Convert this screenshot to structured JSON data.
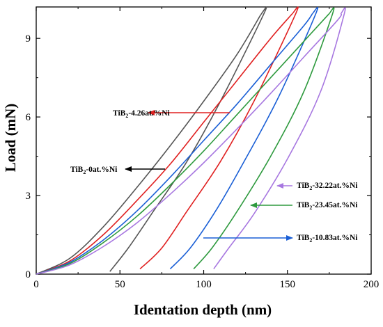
{
  "chart_data": {
    "type": "line",
    "title": "",
    "xlabel": "Identation depth (nm)",
    "ylabel": "Load (mN)",
    "xlim": [
      0,
      200
    ],
    "ylim": [
      0,
      10.2
    ],
    "xticks": [
      0,
      50,
      100,
      150,
      200
    ],
    "yticks": [
      0,
      3,
      6,
      9
    ],
    "grid": false,
    "legend": "none",
    "series": [
      {
        "name": "TiB2-0at.%Ni",
        "color": "#555555",
        "loading": [
          [
            0,
            0
          ],
          [
            20,
            0.6
          ],
          [
            40,
            1.8
          ],
          [
            60,
            3.3
          ],
          [
            80,
            4.9
          ],
          [
            100,
            6.6
          ],
          [
            120,
            8.4
          ],
          [
            134,
            9.9
          ]
        ],
        "unloading": [
          [
            136,
            9.95
          ],
          [
            110,
            6.6
          ],
          [
            90,
            4.3
          ],
          [
            70,
            2.4
          ],
          [
            55,
            1.0
          ],
          [
            44,
            0.1
          ]
        ]
      },
      {
        "name": "TiB2-4.26at.%Ni",
        "color": "#e02020",
        "loading": [
          [
            0,
            0
          ],
          [
            20,
            0.5
          ],
          [
            40,
            1.5
          ],
          [
            60,
            2.8
          ],
          [
            80,
            4.2
          ],
          [
            100,
            5.8
          ],
          [
            120,
            7.4
          ],
          [
            140,
            9.0
          ],
          [
            153,
            9.95
          ]
        ],
        "unloading": [
          [
            155,
            9.95
          ],
          [
            130,
            6.6
          ],
          [
            110,
            4.3
          ],
          [
            90,
            2.4
          ],
          [
            75,
            1.0
          ],
          [
            62,
            0.2
          ]
        ]
      },
      {
        "name": "TiB2-10.83at.%Ni",
        "color": "#1a5fd6",
        "loading": [
          [
            0,
            0
          ],
          [
            20,
            0.45
          ],
          [
            40,
            1.3
          ],
          [
            60,
            2.4
          ],
          [
            80,
            3.7
          ],
          [
            100,
            5.1
          ],
          [
            120,
            6.5
          ],
          [
            140,
            8.0
          ],
          [
            160,
            9.5
          ],
          [
            165,
            9.95
          ]
        ],
        "unloading": [
          [
            167,
            9.95
          ],
          [
            145,
            6.8
          ],
          [
            125,
            4.4
          ],
          [
            108,
            2.5
          ],
          [
            92,
            1.0
          ],
          [
            80,
            0.2
          ]
        ]
      },
      {
        "name": "TiB2-23.45at.%Ni",
        "color": "#2e9a3e",
        "loading": [
          [
            0,
            0
          ],
          [
            20,
            0.4
          ],
          [
            40,
            1.2
          ],
          [
            60,
            2.2
          ],
          [
            80,
            3.4
          ],
          [
            100,
            4.7
          ],
          [
            120,
            6.1
          ],
          [
            140,
            7.5
          ],
          [
            160,
            8.9
          ],
          [
            175,
            9.95
          ]
        ],
        "unloading": [
          [
            177,
            9.95
          ],
          [
            160,
            7.0
          ],
          [
            140,
            4.5
          ],
          [
            120,
            2.4
          ],
          [
            105,
            1.0
          ],
          [
            94,
            0.2
          ]
        ]
      },
      {
        "name": "TiB2-32.22at.%Ni",
        "color": "#a777e0",
        "loading": [
          [
            0,
            0
          ],
          [
            20,
            0.35
          ],
          [
            40,
            1.05
          ],
          [
            60,
            1.95
          ],
          [
            80,
            3.05
          ],
          [
            100,
            4.25
          ],
          [
            120,
            5.55
          ],
          [
            140,
            6.9
          ],
          [
            160,
            8.3
          ],
          [
            180,
            9.7
          ],
          [
            182,
            9.95
          ]
        ],
        "unloading": [
          [
            184,
            9.95
          ],
          [
            170,
            7.0
          ],
          [
            150,
            4.4
          ],
          [
            130,
            2.3
          ],
          [
            115,
            1.0
          ],
          [
            106,
            0.2
          ]
        ]
      }
    ],
    "annotations": [
      {
        "base": "TiB",
        "sub": "2",
        "rest": "-4.26at.%Ni",
        "color": "#e02020"
      },
      {
        "base": "TiB",
        "sub": "2",
        "rest": "-0at.%Ni",
        "color": "#000000"
      },
      {
        "base": "TiB",
        "sub": "2",
        "rest": "-32.22at.%Ni",
        "color": "#a777e0"
      },
      {
        "base": "TiB",
        "sub": "2",
        "rest": "-23.45at.%Ni",
        "color": "#2e9a3e"
      },
      {
        "base": "TiB",
        "sub": "2",
        "rest": "-10.83at.%Ni",
        "color": "#1a5fd6"
      }
    ]
  }
}
